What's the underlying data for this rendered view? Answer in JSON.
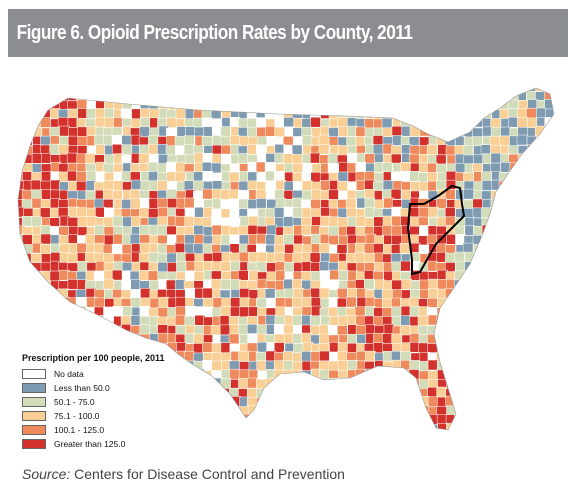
{
  "title": "Figure 6. Opioid Prescription Rates by County, 2011",
  "legend": {
    "title": "Prescription per 100 people, 2011",
    "items": [
      {
        "label": "No data",
        "color": "#ffffff"
      },
      {
        "label": "Less than 50.0",
        "color": "#7f9bb2"
      },
      {
        "label": "50.1 - 75.0",
        "color": "#d3dcb9"
      },
      {
        "label": "75.1 - 100.0",
        "color": "#f9cf95"
      },
      {
        "label": "100.1 - 125.0",
        "color": "#ee8a5c"
      },
      {
        "label": "Greater than 125.0",
        "color": "#d2312c"
      }
    ]
  },
  "source": {
    "label": "Source:",
    "text": " Centers for Disease Control and Prevention"
  },
  "colors": {
    "title_bar": "#8b8d90",
    "county_border": "#ffffff",
    "highlight_region": "#000000"
  }
}
